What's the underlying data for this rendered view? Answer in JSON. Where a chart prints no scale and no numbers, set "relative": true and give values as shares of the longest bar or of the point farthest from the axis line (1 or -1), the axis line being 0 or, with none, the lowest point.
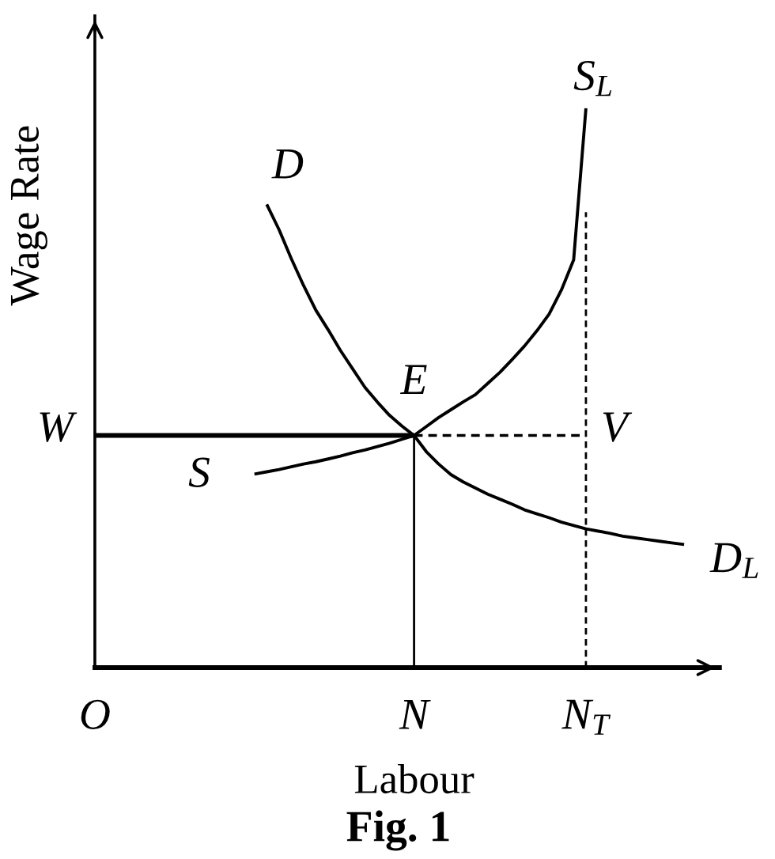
{
  "chart_data": {
    "type": "line",
    "relative": true,
    "xlabel": "Labour",
    "ylabel": "Wage Rate",
    "tick_labels": "x",
    "categories": [
      "O",
      null,
      null,
      null,
      null,
      null,
      null,
      null,
      null,
      null,
      null,
      null,
      null,
      null,
      null,
      null,
      null,
      null,
      null,
      null,
      null,
      null,
      null,
      null,
      null,
      null,
      "N",
      null,
      null,
      null,
      null,
      null,
      null,
      null,
      null,
      null,
      null,
      null,
      null,
      null,
      "N$_{T}$",
      null,
      null,
      null,
      null,
      null,
      null,
      null,
      null
    ],
    "series": [
      {
        "color": "#000000",
        "line_style": "solid",
        "values": [
          null,
          null,
          null,
          null,
          null,
          null,
          null,
          null,
          null,
          null,
          null,
          null,
          null,
          null,
          0.828,
          0.783,
          0.731,
          0.683,
          0.639,
          0.604,
          0.567,
          0.534,
          0.501,
          0.475,
          0.451,
          0.432,
          0.415,
          0.386,
          0.364,
          0.345,
          0.332,
          0.321,
          0.31,
          0.301,
          0.292,
          0.282,
          0.275,
          0.268,
          0.26,
          0.254,
          0.248,
          0.244,
          0.24,
          0.235,
          0.232,
          0.229,
          0.226,
          0.223,
          0.22
        ]
      },
      {
        "color": "#000000",
        "line_style": "solid",
        "values": [
          null,
          null,
          null,
          null,
          null,
          null,
          null,
          null,
          null,
          null,
          null,
          null,
          null,
          0.346,
          0.35,
          0.354,
          0.359,
          0.364,
          0.368,
          0.373,
          0.378,
          0.384,
          0.389,
          0.395,
          0.401,
          0.408,
          0.415,
          0.431,
          0.447,
          0.461,
          0.475,
          0.488,
          0.508,
          0.528,
          0.551,
          0.575,
          0.602,
          0.632,
          0.675,
          0.729,
          1.0,
          null,
          null,
          null,
          null,
          null,
          null,
          null,
          null
        ]
      },
      {
        "color": "#000000",
        "line_style": "solid",
        "values": [
          0.415,
          0.415,
          0.415,
          0.415,
          0.415,
          0.415,
          0.415,
          0.415,
          0.415,
          0.415,
          0.415,
          0.415,
          0.415,
          0.415,
          0.415,
          0.415,
          0.415,
          0.415,
          0.415,
          0.415,
          0.415,
          0.415,
          0.415,
          0.415,
          0.415,
          0.415,
          0.415,
          null,
          null,
          null,
          null,
          null,
          null,
          null,
          null,
          null,
          null,
          null,
          null,
          null,
          null,
          null,
          null,
          null,
          null,
          null,
          null,
          null,
          null
        ]
      },
      {
        "color": "#000000",
        "line_style": "solid",
        "x": [
          "N",
          "N"
        ],
        "values": [
          0,
          0.415
        ]
      },
      {
        "color": "#000000",
        "line_style": "dashed",
        "values": [
          null,
          null,
          null,
          null,
          null,
          null,
          null,
          null,
          null,
          null,
          null,
          null,
          null,
          null,
          null,
          null,
          null,
          null,
          null,
          null,
          null,
          null,
          null,
          null,
          null,
          null,
          0.415,
          0.415,
          0.415,
          0.415,
          0.415,
          0.415,
          0.415,
          0.415,
          0.415,
          0.415,
          0.415,
          0.415,
          0.415,
          0.415,
          0.415,
          null,
          null,
          null,
          null,
          null,
          null,
          null,
          null
        ]
      },
      {
        "color": "#000000",
        "line_style": "dashed",
        "x": [
          "N$_{T}$",
          "N$_{T}$"
        ],
        "values": [
          0,
          0.814
        ]
      }
    ],
    "annotations": [
      {
        "text": "E",
        "x": "N",
        "y": 0.415
      },
      {
        "text": "S$_{L}$",
        "x": "N$_{T}$",
        "y": 1.0
      },
      {
        "text": "V",
        "x": "N$_{T}$",
        "y": 0.415
      },
      {
        "text": "W",
        "x": "O",
        "y": 0.415
      },
      "D",
      "S",
      "D$_{L}$",
      "Fig. 1"
    ]
  }
}
